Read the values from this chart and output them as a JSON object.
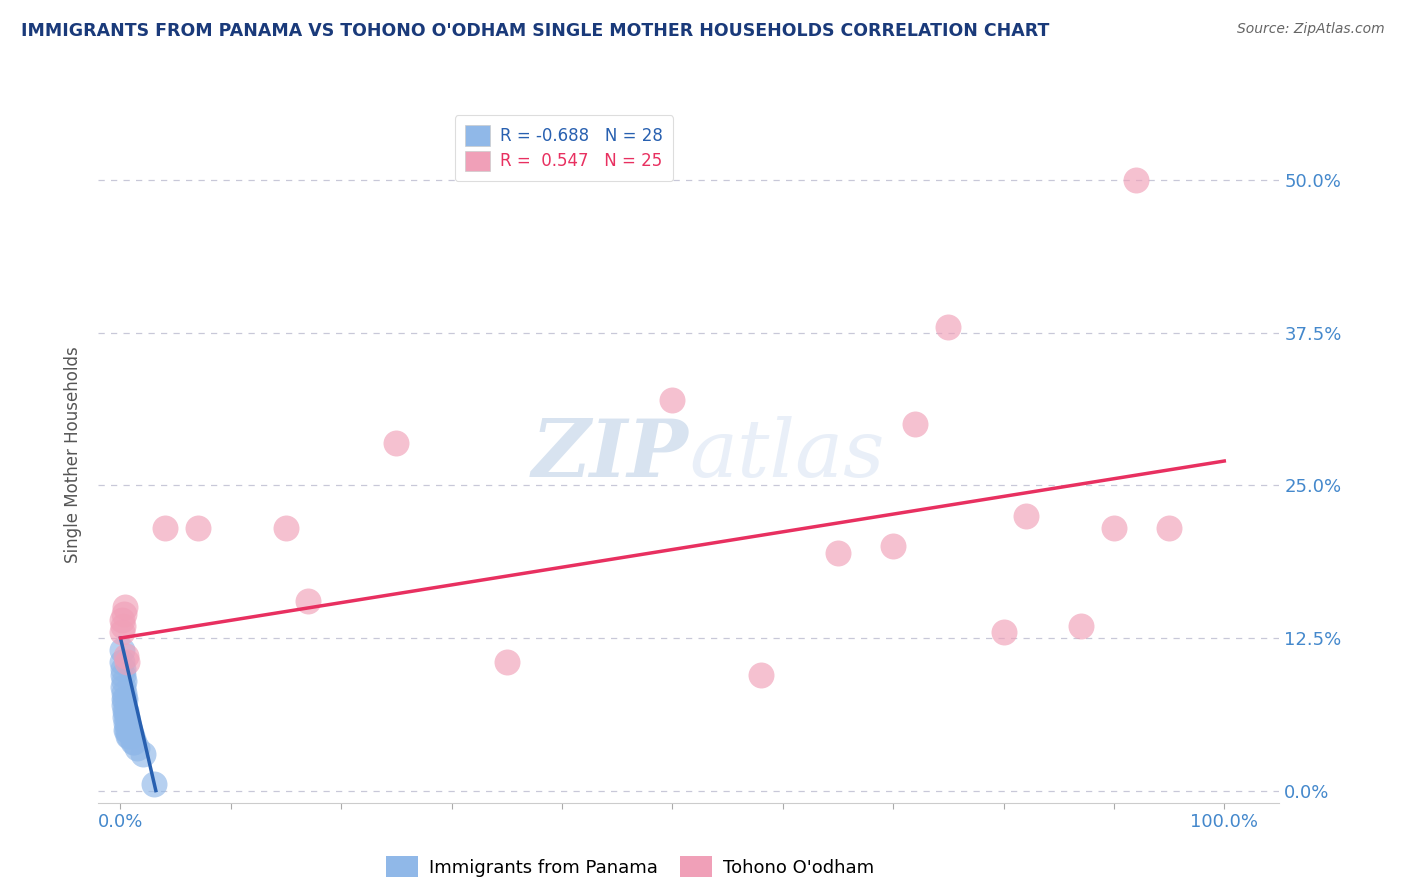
{
  "title": "IMMIGRANTS FROM PANAMA VS TOHONO O'ODHAM SINGLE MOTHER HOUSEHOLDS CORRELATION CHART",
  "source": "Source: ZipAtlas.com",
  "ylabel": "Single Mother Households",
  "xlim": [
    -0.02,
    1.05
  ],
  "ylim": [
    -0.01,
    0.56
  ],
  "ytick_labels": [
    "0.0%",
    "12.5%",
    "25.0%",
    "37.5%",
    "50.0%"
  ],
  "ytick_values": [
    0.0,
    0.125,
    0.25,
    0.375,
    0.5
  ],
  "xtick_values": [
    0.0,
    0.1,
    0.2,
    0.3,
    0.4,
    0.5,
    0.6,
    0.7,
    0.8,
    0.9,
    1.0
  ],
  "xtick_labels_sparse": {
    "0": "0.0%",
    "10": "100.0%"
  },
  "legend_R1": "R = -0.688",
  "legend_N1": "N = 28",
  "legend_R2": "R =  0.547",
  "legend_N2": "N = 25",
  "blue_color": "#90b8e8",
  "pink_color": "#f0a0b8",
  "blue_line_color": "#2860b0",
  "pink_line_color": "#e83060",
  "background_color": "#ffffff",
  "grid_color": "#c8c8d8",
  "watermark_color": "#d0dff0",
  "title_color": "#1a3a7a",
  "source_color": "#666666",
  "tick_color": "#4488cc",
  "ylabel_color": "#555555",
  "blue_scatter": [
    [
      0.001,
      0.115
    ],
    [
      0.001,
      0.105
    ],
    [
      0.002,
      0.095
    ],
    [
      0.002,
      0.1
    ],
    [
      0.002,
      0.085
    ],
    [
      0.003,
      0.09
    ],
    [
      0.003,
      0.08
    ],
    [
      0.003,
      0.075
    ],
    [
      0.003,
      0.07
    ],
    [
      0.004,
      0.075
    ],
    [
      0.004,
      0.065
    ],
    [
      0.004,
      0.06
    ],
    [
      0.005,
      0.065
    ],
    [
      0.005,
      0.055
    ],
    [
      0.005,
      0.05
    ],
    [
      0.006,
      0.06
    ],
    [
      0.006,
      0.05
    ],
    [
      0.007,
      0.055
    ],
    [
      0.007,
      0.045
    ],
    [
      0.008,
      0.05
    ],
    [
      0.008,
      0.045
    ],
    [
      0.009,
      0.05
    ],
    [
      0.01,
      0.045
    ],
    [
      0.011,
      0.04
    ],
    [
      0.012,
      0.04
    ],
    [
      0.015,
      0.035
    ],
    [
      0.02,
      0.03
    ],
    [
      0.03,
      0.005
    ]
  ],
  "pink_scatter": [
    [
      0.001,
      0.13
    ],
    [
      0.001,
      0.14
    ],
    [
      0.002,
      0.135
    ],
    [
      0.003,
      0.145
    ],
    [
      0.004,
      0.15
    ],
    [
      0.005,
      0.11
    ],
    [
      0.006,
      0.105
    ],
    [
      0.04,
      0.215
    ],
    [
      0.07,
      0.215
    ],
    [
      0.15,
      0.215
    ],
    [
      0.17,
      0.155
    ],
    [
      0.25,
      0.285
    ],
    [
      0.35,
      0.105
    ],
    [
      0.5,
      0.32
    ],
    [
      0.58,
      0.095
    ],
    [
      0.65,
      0.195
    ],
    [
      0.7,
      0.2
    ],
    [
      0.72,
      0.3
    ],
    [
      0.75,
      0.38
    ],
    [
      0.8,
      0.13
    ],
    [
      0.82,
      0.225
    ],
    [
      0.87,
      0.135
    ],
    [
      0.9,
      0.215
    ],
    [
      0.92,
      0.5
    ],
    [
      0.95,
      0.215
    ]
  ],
  "blue_trend_x": [
    0.0,
    0.032
  ],
  "blue_trend_y": [
    0.125,
    0.0
  ],
  "pink_trend_x": [
    0.0,
    1.0
  ],
  "pink_trend_y": [
    0.125,
    0.27
  ]
}
